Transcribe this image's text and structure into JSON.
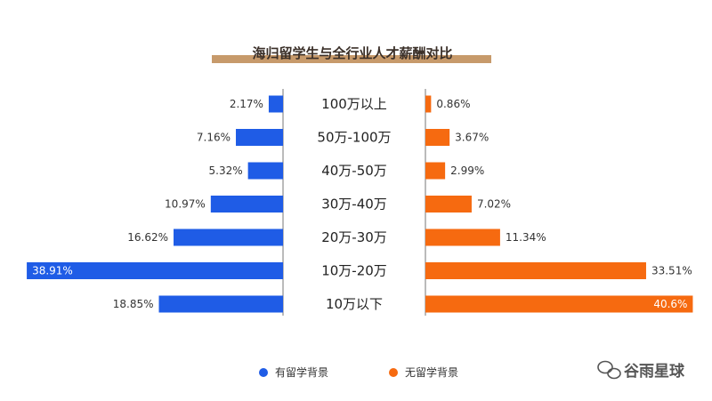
{
  "chart_data": {
    "type": "bar",
    "orientation": "horizontal-butterfly",
    "title": "海归留学生与全行业人才薪酬对比",
    "categories": [
      "100万以上",
      "50万-100万",
      "40万-50万",
      "30万-40万",
      "20万-30万",
      "10万-20万",
      "10万以下"
    ],
    "series": [
      {
        "name": "有留学背景",
        "side": "left",
        "color": "#1f5ce6",
        "values": [
          2.17,
          7.16,
          5.32,
          10.97,
          16.62,
          38.91,
          18.85
        ],
        "labels": [
          "2.17%",
          "7.16%",
          "5.32%",
          "10.97%",
          "16.62%",
          "38.91%",
          "18.85%"
        ]
      },
      {
        "name": "无留学背景",
        "side": "right",
        "color": "#f66a10",
        "values": [
          0.86,
          3.67,
          2.99,
          7.02,
          11.34,
          33.51,
          40.6
        ],
        "labels": [
          "0.86%",
          "3.67%",
          "2.99%",
          "7.02%",
          "11.34%",
          "33.51%",
          "40.6%"
        ]
      }
    ],
    "legend_position": "bottom-center",
    "grid": false
  },
  "colors": {
    "title_band": "#c79a6b",
    "axis": "#777777"
  },
  "watermark": {
    "icon": "wechat-icon",
    "text": "谷雨星球"
  }
}
